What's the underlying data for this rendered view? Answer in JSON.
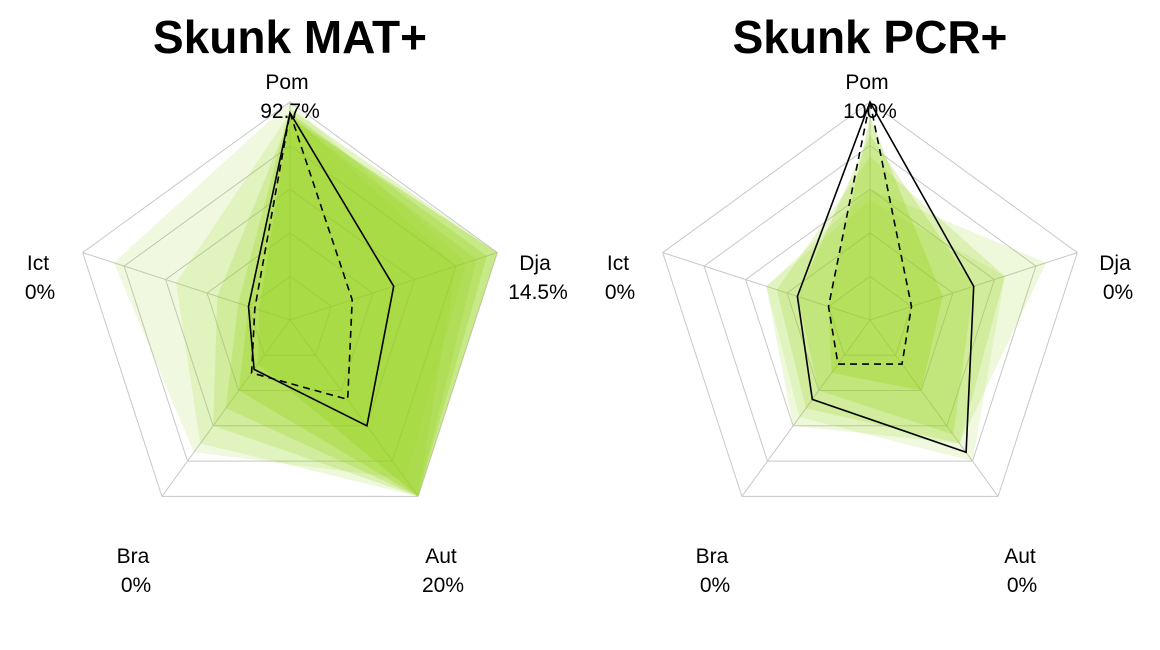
{
  "style": {
    "band_color": "#94d31b"
  },
  "chart_data": [
    {
      "type": "radar",
      "title": "Skunk MAT+",
      "axes": [
        {
          "name": "Pom",
          "value_label": "92.7%"
        },
        {
          "name": "Dja",
          "value_label": "14.5%"
        },
        {
          "name": "Aut",
          "value_label": "20%"
        },
        {
          "name": "Bra",
          "value_label": "0%"
        },
        {
          "name": "Ict",
          "value_label": "0%"
        }
      ],
      "rings": 5,
      "bands": [
        {
          "values": [
            0.93,
            1.0,
            1.0,
            0.25,
            0.15
          ],
          "opacity": 0.35
        },
        {
          "values": [
            0.95,
            0.95,
            1.0,
            0.4,
            0.2
          ],
          "opacity": 0.3
        },
        {
          "values": [
            0.97,
            1.0,
            1.0,
            0.5,
            0.25
          ],
          "opacity": 0.25
        },
        {
          "values": [
            0.93,
            0.9,
            1.0,
            0.6,
            0.35
          ],
          "opacity": 0.2
        },
        {
          "values": [
            0.95,
            0.8,
            1.0,
            0.7,
            0.55
          ],
          "opacity": 0.16
        },
        {
          "values": [
            1.0,
            0.85,
            0.9,
            0.75,
            0.85
          ],
          "opacity": 0.14
        }
      ],
      "series": [
        {
          "style": "solid",
          "values": [
            0.95,
            0.5,
            0.6,
            0.28,
            0.2
          ]
        },
        {
          "style": "dashed",
          "values": [
            0.95,
            0.3,
            0.45,
            0.3,
            0.17
          ]
        }
      ]
    },
    {
      "type": "radar",
      "title": "Skunk PCR+",
      "axes": [
        {
          "name": "Pom",
          "value_label": "100%"
        },
        {
          "name": "Dja",
          "value_label": "0%"
        },
        {
          "name": "Aut",
          "value_label": "0%"
        },
        {
          "name": "Bra",
          "value_label": "0%"
        },
        {
          "name": "Ict",
          "value_label": "0%"
        }
      ],
      "rings": 5,
      "bands": [
        {
          "values": [
            0.93,
            0.35,
            0.4,
            0.3,
            0.2
          ],
          "opacity": 0.3
        },
        {
          "values": [
            0.85,
            0.5,
            0.65,
            0.4,
            0.35
          ],
          "opacity": 0.25
        },
        {
          "values": [
            0.75,
            0.65,
            0.7,
            0.5,
            0.45
          ],
          "opacity": 0.2
        },
        {
          "values": [
            0.6,
            0.85,
            0.7,
            0.6,
            0.5
          ],
          "opacity": 0.16
        },
        {
          "values": [
            0.55,
            0.65,
            0.8,
            0.55,
            0.5
          ],
          "opacity": 0.14
        }
      ],
      "series": [
        {
          "style": "solid",
          "values": [
            1.0,
            0.5,
            0.75,
            0.45,
            0.35
          ]
        },
        {
          "style": "dashed",
          "values": [
            1.0,
            0.2,
            0.25,
            0.25,
            0.2
          ]
        }
      ]
    }
  ]
}
